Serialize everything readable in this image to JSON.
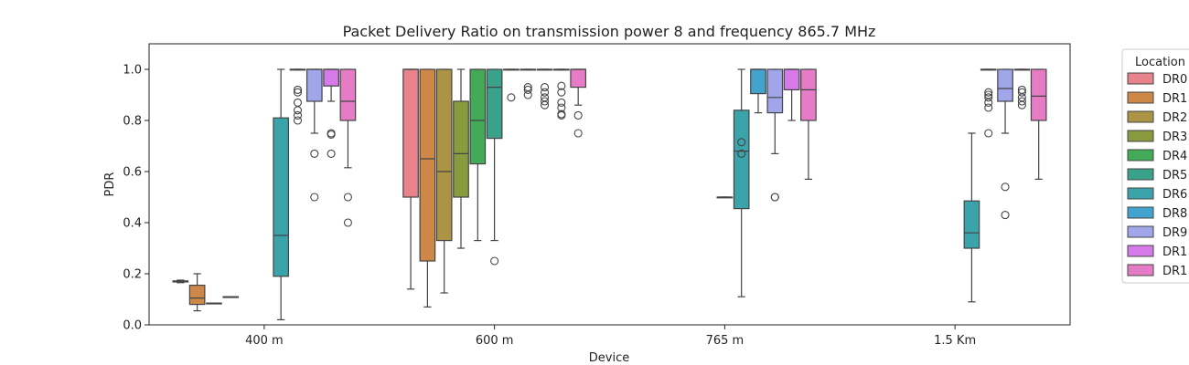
{
  "chart_data": {
    "type": "box",
    "title": "Packet Delivery Ratio on transmission power 8 and frequency 865.7 MHz",
    "xlabel": "Device",
    "ylabel": "PDR",
    "ylim": [
      0,
      1.1
    ],
    "yticks": [
      "0.0",
      "0.2",
      "0.4",
      "0.6",
      "0.8",
      "1.0"
    ],
    "categories": [
      "400 m",
      "600 m",
      "765 m",
      "1.5 Km"
    ],
    "grid": false,
    "legend": {
      "title": "Location",
      "placement": "outside-right",
      "entries": [
        "DR0",
        "DR1",
        "DR2",
        "DR3",
        "DR4",
        "DR5",
        "DR6",
        "DR8",
        "DR9",
        "DR1",
        "DR1"
      ]
    },
    "series": [
      {
        "name": "DR0",
        "color": "#e8828b",
        "boxes": [
          {
            "category": "400 m",
            "min": 0.165,
            "q1": 0.168,
            "median": 0.17,
            "q3": 0.172,
            "max": 0.175,
            "outliers": []
          },
          {
            "category": "600 m",
            "min": 0.14,
            "q1": 0.5,
            "median": 1.0,
            "q3": 1.0,
            "max": 1.0,
            "outliers": []
          }
        ]
      },
      {
        "name": "DR1",
        "color": "#cd8848",
        "boxes": [
          {
            "category": "400 m",
            "min": 0.055,
            "q1": 0.08,
            "median": 0.105,
            "q3": 0.155,
            "max": 0.2,
            "outliers": []
          },
          {
            "category": "600 m",
            "min": 0.07,
            "q1": 0.25,
            "median": 0.65,
            "q3": 1.0,
            "max": 1.0,
            "outliers": []
          }
        ]
      },
      {
        "name": "DR2",
        "color": "#ab9444",
        "boxes": [
          {
            "category": "400 m",
            "min": 0.085,
            "q1": 0.085,
            "median": 0.085,
            "q3": 0.085,
            "max": 0.085,
            "outliers": []
          },
          {
            "category": "600 m",
            "min": 0.125,
            "q1": 0.33,
            "median": 0.6,
            "q3": 1.0,
            "max": 1.0,
            "outliers": []
          }
        ]
      },
      {
        "name": "DR3",
        "color": "#8a9a3f",
        "boxes": [
          {
            "category": "400 m",
            "min": 0.11,
            "q1": 0.11,
            "median": 0.11,
            "q3": 0.11,
            "max": 0.11,
            "outliers": []
          },
          {
            "category": "600 m",
            "min": 0.3,
            "q1": 0.5,
            "median": 0.67,
            "q3": 0.875,
            "max": 1.0,
            "outliers": []
          }
        ]
      },
      {
        "name": "DR4",
        "color": "#43aa57",
        "boxes": [
          {
            "category": "600 m",
            "min": 0.33,
            "q1": 0.63,
            "median": 0.8,
            "q3": 1.0,
            "max": 1.0,
            "outliers": []
          }
        ]
      },
      {
        "name": "DR5",
        "color": "#3aa28b",
        "boxes": [
          {
            "category": "600 m",
            "min": 0.33,
            "q1": 0.73,
            "median": 0.93,
            "q3": 1.0,
            "max": 1.0,
            "outliers": [
              0.25
            ]
          },
          {
            "category": "765 m",
            "min": 0.5,
            "q1": 0.5,
            "median": 0.5,
            "q3": 0.5,
            "max": 0.5,
            "outliers": []
          }
        ]
      },
      {
        "name": "DR6",
        "color": "#3ba3aa",
        "boxes": [
          {
            "category": "400 m",
            "min": 0.02,
            "q1": 0.19,
            "median": 0.35,
            "q3": 0.81,
            "max": 1.0,
            "outliers": []
          },
          {
            "category": "600 m",
            "min": 1.0,
            "q1": 1.0,
            "median": 1.0,
            "q3": 1.0,
            "max": 1.0,
            "outliers": [
              0.89
            ]
          },
          {
            "category": "765 m",
            "min": 0.11,
            "q1": 0.455,
            "median": 0.68,
            "q3": 0.84,
            "max": 1.0,
            "outliers": [
              0.715,
              0.67
            ]
          },
          {
            "category": "1.5 Km",
            "min": 0.09,
            "q1": 0.3,
            "median": 0.36,
            "q3": 0.485,
            "max": 0.75,
            "outliers": []
          }
        ]
      },
      {
        "name": "DR8",
        "color": "#42a3cf",
        "boxes": [
          {
            "category": "400 m",
            "min": 1.0,
            "q1": 1.0,
            "median": 1.0,
            "q3": 1.0,
            "max": 1.0,
            "outliers": [
              0.92,
              0.91,
              0.87,
              0.84,
              0.82,
              0.8
            ]
          },
          {
            "category": "600 m",
            "min": 1.0,
            "q1": 1.0,
            "median": 1.0,
            "q3": 1.0,
            "max": 1.0,
            "outliers": [
              0.93,
              0.92,
              0.9
            ]
          },
          {
            "category": "765 m",
            "min": 0.83,
            "q1": 0.905,
            "median": 1.0,
            "q3": 1.0,
            "max": 1.0,
            "outliers": []
          },
          {
            "category": "1.5 Km",
            "min": 1.0,
            "q1": 1.0,
            "median": 1.0,
            "q3": 1.0,
            "max": 1.0,
            "outliers": [
              0.91,
              0.9,
              0.89,
              0.87,
              0.85,
              0.75
            ]
          }
        ]
      },
      {
        "name": "DR9",
        "color": "#a1a5ea",
        "boxes": [
          {
            "category": "400 m",
            "min": 0.75,
            "q1": 0.875,
            "median": 1.0,
            "q3": 1.0,
            "max": 1.0,
            "outliers": [
              0.67,
              0.5
            ]
          },
          {
            "category": "600 m",
            "min": 1.0,
            "q1": 1.0,
            "median": 1.0,
            "q3": 1.0,
            "max": 1.0,
            "outliers": [
              0.93,
              0.91,
              0.89,
              0.875,
              0.86
            ]
          },
          {
            "category": "765 m",
            "min": 0.67,
            "q1": 0.83,
            "median": 0.89,
            "q3": 1.0,
            "max": 1.0,
            "outliers": [
              0.5,
              0.5
            ]
          },
          {
            "category": "1.5 Km",
            "min": 0.75,
            "q1": 0.875,
            "median": 0.925,
            "q3": 1.0,
            "max": 1.0,
            "outliers": [
              0.54,
              0.43
            ]
          }
        ]
      },
      {
        "name": "DR1",
        "color": "#d57ae8",
        "boxes": [
          {
            "category": "400 m",
            "min": 0.875,
            "q1": 0.935,
            "median": 1.0,
            "q3": 1.0,
            "max": 1.0,
            "outliers": [
              0.75,
              0.745,
              0.67
            ]
          },
          {
            "category": "600 m",
            "min": 1.0,
            "q1": 1.0,
            "median": 1.0,
            "q3": 1.0,
            "max": 1.0,
            "outliers": [
              0.935,
              0.91,
              0.87,
              0.85,
              0.825,
              0.82
            ]
          },
          {
            "category": "765 m",
            "min": 0.8,
            "q1": 0.92,
            "median": 1.0,
            "q3": 1.0,
            "max": 1.0,
            "outliers": []
          },
          {
            "category": "1.5 Km",
            "min": 1.0,
            "q1": 1.0,
            "median": 1.0,
            "q3": 1.0,
            "max": 1.0,
            "outliers": [
              0.92,
              0.91,
              0.89,
              0.875,
              0.86
            ]
          }
        ]
      },
      {
        "name": "DR1",
        "color": "#e67cc6",
        "boxes": [
          {
            "category": "400 m",
            "min": 0.615,
            "q1": 0.8,
            "median": 0.875,
            "q3": 1.0,
            "max": 1.0,
            "outliers": [
              0.5,
              0.4
            ]
          },
          {
            "category": "600 m",
            "min": 0.86,
            "q1": 0.93,
            "median": 1.0,
            "q3": 1.0,
            "max": 1.0,
            "outliers": [
              0.82,
              0.75
            ]
          },
          {
            "category": "765 m",
            "min": 0.57,
            "q1": 0.8,
            "median": 0.92,
            "q3": 1.0,
            "max": 1.0,
            "outliers": []
          },
          {
            "category": "1.5 Km",
            "min": 0.57,
            "q1": 0.8,
            "median": 0.895,
            "q3": 1.0,
            "max": 1.0,
            "outliers": []
          }
        ]
      }
    ]
  }
}
